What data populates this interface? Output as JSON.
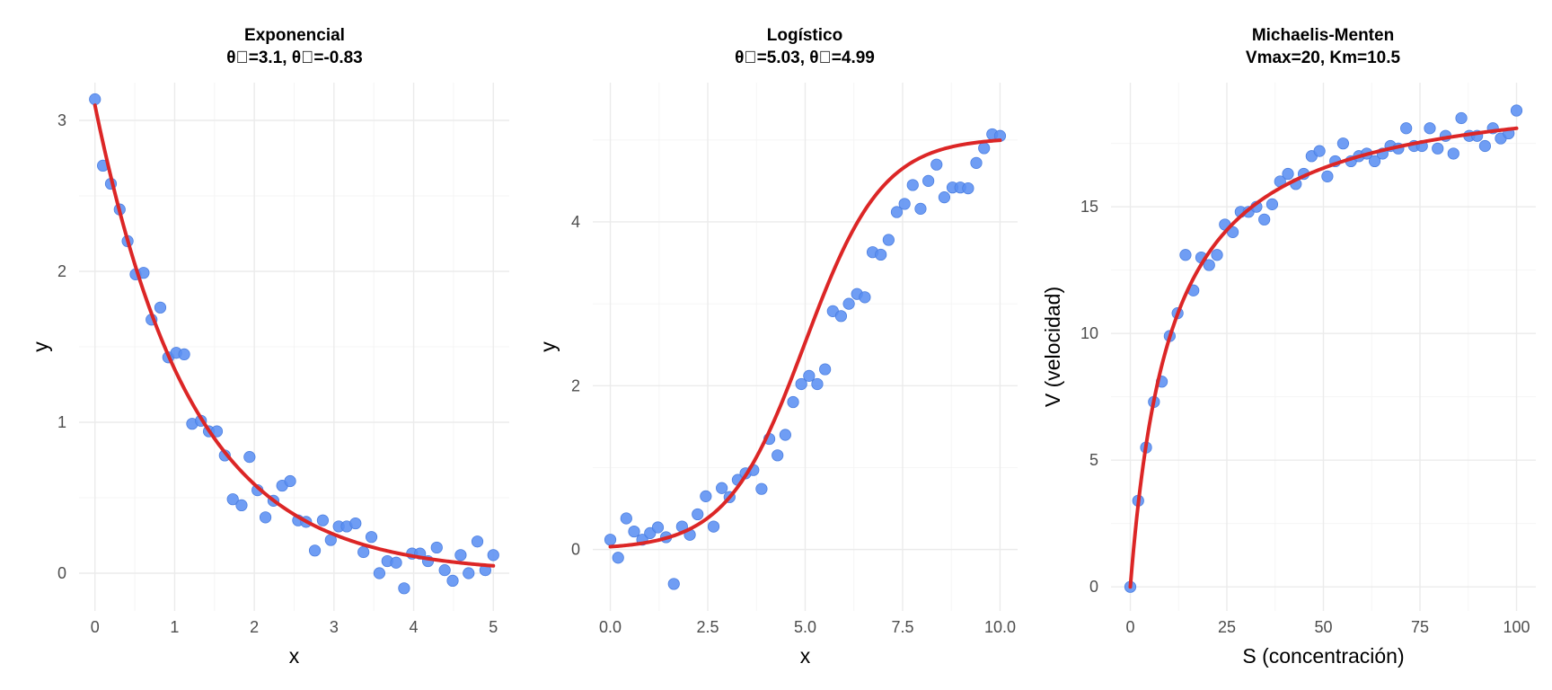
{
  "colors": {
    "points": "#5B8FF2",
    "fit_line": "#DC2626"
  },
  "chart_data": [
    {
      "type": "scatter",
      "title": "Exponencial",
      "subtitle": "θ\u0000=3.1, θ\u0000=-0.83",
      "xlabel": "x",
      "ylabel": "y",
      "xlim": [
        -0.2,
        5.2
      ],
      "ylim": [
        -0.25,
        3.25
      ],
      "xticks": [
        0,
        1,
        2,
        3,
        4,
        5
      ],
      "xticklabels": [
        "0",
        "1",
        "2",
        "3",
        "4",
        "5"
      ],
      "yticks": [
        0,
        1,
        2,
        3
      ],
      "yticklabels": [
        "0",
        "1",
        "2",
        "3"
      ],
      "grid": true,
      "series": [
        {
          "kind": "points",
          "x": [
            0.0,
            0.1,
            0.2,
            0.31,
            0.41,
            0.51,
            0.61,
            0.71,
            0.82,
            0.92,
            1.02,
            1.12,
            1.22,
            1.33,
            1.43,
            1.53,
            1.63,
            1.73,
            1.84,
            1.94,
            2.04,
            2.14,
            2.24,
            2.35,
            2.45,
            2.55,
            2.65,
            2.76,
            2.86,
            2.96,
            3.06,
            3.16,
            3.27,
            3.37,
            3.47,
            3.57,
            3.67,
            3.78,
            3.88,
            3.98,
            4.08,
            4.18,
            4.29,
            4.39,
            4.49,
            4.59,
            4.69,
            4.8,
            4.9,
            5.0
          ],
          "y": [
            3.14,
            2.7,
            2.58,
            2.41,
            2.2,
            1.98,
            1.99,
            1.68,
            1.76,
            1.43,
            1.46,
            1.45,
            0.99,
            1.01,
            0.94,
            0.94,
            0.78,
            0.49,
            0.45,
            0.77,
            0.55,
            0.37,
            0.48,
            0.58,
            0.61,
            0.35,
            0.34,
            0.15,
            0.35,
            0.22,
            0.31,
            0.31,
            0.33,
            0.14,
            0.24,
            0.0,
            0.08,
            0.07,
            -0.1,
            0.13,
            0.13,
            0.08,
            0.17,
            0.02,
            -0.05,
            0.12,
            0.0,
            0.21,
            0.02,
            0.12
          ]
        },
        {
          "kind": "fit",
          "model": "exponential",
          "params": {
            "theta1": 3.1,
            "theta2": -0.83
          }
        }
      ]
    },
    {
      "type": "scatter",
      "title": "Logístico",
      "subtitle": "θ\u0000=5.03, θ\u0000=4.99",
      "xlabel": "x",
      "ylabel": "y",
      "xlim": [
        -0.45,
        10.45
      ],
      "ylim": [
        -0.75,
        5.7
      ],
      "xticks": [
        0,
        2.5,
        5,
        7.5,
        10
      ],
      "xticklabels": [
        "0.0",
        "2.5",
        "5.0",
        "7.5",
        "10.0"
      ],
      "yticks": [
        0,
        2,
        4
      ],
      "yticklabels": [
        "0",
        "2",
        "4"
      ],
      "grid": true,
      "series": [
        {
          "kind": "points",
          "x": [
            0.0,
            0.2,
            0.41,
            0.61,
            0.82,
            1.02,
            1.22,
            1.43,
            1.63,
            1.84,
            2.04,
            2.24,
            2.45,
            2.65,
            2.86,
            3.06,
            3.27,
            3.47,
            3.67,
            3.88,
            4.08,
            4.29,
            4.49,
            4.69,
            4.9,
            5.1,
            5.31,
            5.51,
            5.71,
            5.92,
            6.12,
            6.33,
            6.53,
            6.73,
            6.94,
            7.14,
            7.35,
            7.55,
            7.76,
            7.96,
            8.16,
            8.37,
            8.57,
            8.78,
            8.98,
            9.18,
            9.39,
            9.59,
            9.8,
            10.0
          ],
          "y": [
            0.12,
            -0.1,
            0.38,
            0.22,
            0.12,
            0.2,
            0.27,
            0.15,
            -0.42,
            0.28,
            0.18,
            0.43,
            0.65,
            0.28,
            0.75,
            0.64,
            0.85,
            0.93,
            0.97,
            0.74,
            1.35,
            1.15,
            1.4,
            1.8,
            2.02,
            2.12,
            2.02,
            2.2,
            2.91,
            2.85,
            3.0,
            3.12,
            3.08,
            3.63,
            3.6,
            3.78,
            4.12,
            4.22,
            4.45,
            4.16,
            4.5,
            4.7,
            4.3,
            4.42,
            4.42,
            4.41,
            4.72,
            4.9,
            5.07,
            5.05
          ]
        },
        {
          "kind": "fit",
          "model": "logistic",
          "params": {
            "K": 5.03,
            "midpoint": 4.99
          }
        }
      ]
    },
    {
      "type": "scatter",
      "title": "Michaelis-Menten",
      "subtitle": "Vmax=20, Km=10.5",
      "xlabel": "S (concentración)",
      "ylabel": "V (velocidad)",
      "xlim": [
        -5,
        105
      ],
      "ylim": [
        -0.95,
        19.9
      ],
      "xticks": [
        0,
        25,
        50,
        75,
        100
      ],
      "xticklabels": [
        "0",
        "25",
        "50",
        "75",
        "100"
      ],
      "yticks": [
        0,
        5,
        10,
        15
      ],
      "yticklabels": [
        "0",
        "5",
        "10",
        "15"
      ],
      "grid": true,
      "series": [
        {
          "kind": "points",
          "x": [
            0.0,
            2.04,
            4.08,
            6.12,
            8.16,
            10.2,
            12.24,
            14.29,
            16.33,
            18.37,
            20.41,
            22.45,
            24.49,
            26.53,
            28.57,
            30.61,
            32.65,
            34.69,
            36.73,
            38.78,
            40.82,
            42.86,
            44.9,
            46.94,
            48.98,
            51.02,
            53.06,
            55.1,
            57.14,
            59.18,
            61.22,
            63.27,
            65.31,
            67.35,
            69.39,
            71.43,
            73.47,
            75.51,
            77.55,
            79.59,
            81.63,
            83.67,
            85.71,
            87.76,
            89.8,
            91.84,
            93.88,
            95.92,
            97.96,
            100.0
          ],
          "y": [
            0.0,
            3.4,
            5.5,
            7.3,
            8.1,
            9.9,
            10.8,
            13.1,
            11.7,
            13.0,
            12.7,
            13.1,
            14.3,
            14.0,
            14.8,
            14.8,
            15.0,
            14.5,
            15.1,
            16.0,
            16.3,
            15.9,
            16.3,
            17.0,
            17.2,
            16.2,
            16.8,
            17.5,
            16.8,
            17.0,
            17.1,
            16.8,
            17.1,
            17.4,
            17.3,
            18.1,
            17.4,
            17.4,
            18.1,
            17.3,
            17.8,
            17.1,
            18.5,
            17.8,
            17.8,
            17.4,
            18.1,
            17.7,
            17.9,
            18.8
          ]
        },
        {
          "kind": "fit",
          "model": "michaelis-menten",
          "params": {
            "Vmax": 20,
            "Km": 10.5
          }
        }
      ]
    }
  ]
}
